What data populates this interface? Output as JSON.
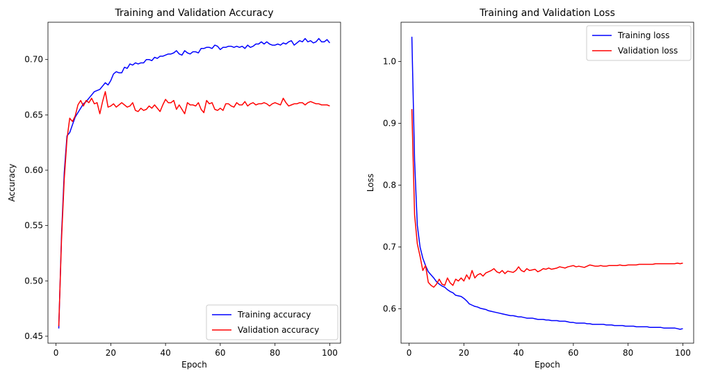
{
  "chart_data": [
    {
      "type": "line",
      "title": "Training and Validation Accuracy",
      "xlabel": "Epoch",
      "ylabel": "Accuracy",
      "xlim": [
        -2.95,
        103.95
      ],
      "ylim": [
        0.4437,
        0.7337
      ],
      "xticks": [
        0,
        20,
        40,
        60,
        80,
        100
      ],
      "yticks": [
        0.45,
        0.5,
        0.55,
        0.6,
        0.65,
        0.7
      ],
      "ytick_labels": [
        "0.45",
        "0.50",
        "0.55",
        "0.60",
        "0.65",
        "0.70"
      ],
      "legend_position": "lower-right",
      "series": [
        {
          "name": "Training accuracy",
          "color": "#0000ff",
          "x_start": 1,
          "values": [
            0.457,
            0.541,
            0.598,
            0.631,
            0.634,
            0.641,
            0.648,
            0.652,
            0.656,
            0.66,
            0.662,
            0.665,
            0.668,
            0.671,
            0.672,
            0.673,
            0.676,
            0.679,
            0.677,
            0.681,
            0.687,
            0.689,
            0.688,
            0.688,
            0.693,
            0.692,
            0.696,
            0.695,
            0.697,
            0.696,
            0.697,
            0.697,
            0.7,
            0.7,
            0.699,
            0.702,
            0.701,
            0.703,
            0.703,
            0.704,
            0.705,
            0.705,
            0.706,
            0.708,
            0.705,
            0.704,
            0.708,
            0.706,
            0.705,
            0.707,
            0.707,
            0.706,
            0.71,
            0.71,
            0.711,
            0.711,
            0.71,
            0.713,
            0.712,
            0.709,
            0.711,
            0.711,
            0.712,
            0.712,
            0.711,
            0.712,
            0.711,
            0.712,
            0.71,
            0.713,
            0.711,
            0.712,
            0.714,
            0.714,
            0.716,
            0.714,
            0.716,
            0.714,
            0.713,
            0.713,
            0.714,
            0.713,
            0.715,
            0.714,
            0.716,
            0.717,
            0.713,
            0.715,
            0.717,
            0.716,
            0.719,
            0.716,
            0.717,
            0.715,
            0.716,
            0.719,
            0.716,
            0.716,
            0.718,
            0.715
          ]
        },
        {
          "name": "Validation accuracy",
          "color": "#ff0000",
          "x_start": 1,
          "values": [
            0.459,
            0.537,
            0.592,
            0.628,
            0.647,
            0.644,
            0.649,
            0.659,
            0.663,
            0.658,
            0.663,
            0.661,
            0.665,
            0.66,
            0.661,
            0.651,
            0.662,
            0.671,
            0.657,
            0.658,
            0.66,
            0.657,
            0.659,
            0.661,
            0.659,
            0.657,
            0.658,
            0.661,
            0.654,
            0.653,
            0.656,
            0.654,
            0.655,
            0.658,
            0.656,
            0.659,
            0.656,
            0.653,
            0.659,
            0.664,
            0.661,
            0.661,
            0.663,
            0.655,
            0.659,
            0.655,
            0.651,
            0.661,
            0.659,
            0.659,
            0.658,
            0.661,
            0.655,
            0.652,
            0.663,
            0.66,
            0.661,
            0.655,
            0.654,
            0.656,
            0.654,
            0.66,
            0.66,
            0.658,
            0.657,
            0.661,
            0.659,
            0.659,
            0.662,
            0.658,
            0.66,
            0.661,
            0.659,
            0.66,
            0.66,
            0.661,
            0.66,
            0.658,
            0.66,
            0.661,
            0.66,
            0.659,
            0.665,
            0.661,
            0.658,
            0.659,
            0.66,
            0.66,
            0.661,
            0.661,
            0.659,
            0.661,
            0.662,
            0.661,
            0.66,
            0.66,
            0.659,
            0.659,
            0.659,
            0.658
          ]
        }
      ]
    },
    {
      "type": "line",
      "title": "Training and Validation Loss",
      "xlabel": "Epoch",
      "ylabel": "Loss",
      "xlim": [
        -2.95,
        103.95
      ],
      "ylim": [
        0.5445,
        1.0635
      ],
      "xticks": [
        0,
        20,
        40,
        60,
        80,
        100
      ],
      "yticks": [
        0.6,
        0.7,
        0.8,
        0.9,
        1.0
      ],
      "ytick_labels": [
        "0.6",
        "0.7",
        "0.8",
        "0.9",
        "1.0"
      ],
      "legend_position": "top-right",
      "series": [
        {
          "name": "Training loss",
          "color": "#0000ff",
          "x_start": 1,
          "values": [
            1.04,
            0.84,
            0.735,
            0.7,
            0.682,
            0.67,
            0.66,
            0.655,
            0.65,
            0.644,
            0.64,
            0.637,
            0.635,
            0.631,
            0.628,
            0.626,
            0.622,
            0.621,
            0.62,
            0.617,
            0.613,
            0.608,
            0.606,
            0.604,
            0.603,
            0.601,
            0.6,
            0.599,
            0.597,
            0.596,
            0.595,
            0.594,
            0.593,
            0.592,
            0.591,
            0.59,
            0.589,
            0.589,
            0.588,
            0.587,
            0.587,
            0.586,
            0.585,
            0.585,
            0.585,
            0.584,
            0.583,
            0.583,
            0.583,
            0.582,
            0.582,
            0.581,
            0.581,
            0.581,
            0.58,
            0.58,
            0.58,
            0.579,
            0.578,
            0.578,
            0.577,
            0.577,
            0.577,
            0.577,
            0.576,
            0.576,
            0.575,
            0.575,
            0.575,
            0.575,
            0.575,
            0.574,
            0.574,
            0.574,
            0.573,
            0.573,
            0.573,
            0.573,
            0.572,
            0.572,
            0.572,
            0.572,
            0.571,
            0.571,
            0.571,
            0.571,
            0.571,
            0.57,
            0.57,
            0.57,
            0.57,
            0.57,
            0.569,
            0.569,
            0.569,
            0.569,
            0.569,
            0.568,
            0.567,
            0.568
          ]
        },
        {
          "name": "Validation loss",
          "color": "#ff0000",
          "x_start": 1,
          "values": [
            0.923,
            0.752,
            0.705,
            0.685,
            0.662,
            0.67,
            0.643,
            0.638,
            0.635,
            0.64,
            0.648,
            0.64,
            0.638,
            0.65,
            0.642,
            0.638,
            0.648,
            0.645,
            0.65,
            0.645,
            0.655,
            0.648,
            0.662,
            0.65,
            0.655,
            0.657,
            0.653,
            0.658,
            0.66,
            0.662,
            0.665,
            0.66,
            0.658,
            0.662,
            0.657,
            0.661,
            0.66,
            0.659,
            0.662,
            0.668,
            0.662,
            0.66,
            0.665,
            0.662,
            0.663,
            0.664,
            0.66,
            0.662,
            0.665,
            0.664,
            0.666,
            0.664,
            0.665,
            0.666,
            0.668,
            0.667,
            0.666,
            0.668,
            0.669,
            0.67,
            0.668,
            0.669,
            0.668,
            0.667,
            0.669,
            0.671,
            0.67,
            0.669,
            0.669,
            0.67,
            0.669,
            0.669,
            0.67,
            0.67,
            0.67,
            0.67,
            0.671,
            0.67,
            0.67,
            0.671,
            0.671,
            0.671,
            0.671,
            0.672,
            0.672,
            0.672,
            0.672,
            0.672,
            0.672,
            0.673,
            0.673,
            0.673,
            0.673,
            0.673,
            0.673,
            0.673,
            0.673,
            0.674,
            0.673,
            0.674
          ]
        }
      ]
    }
  ]
}
